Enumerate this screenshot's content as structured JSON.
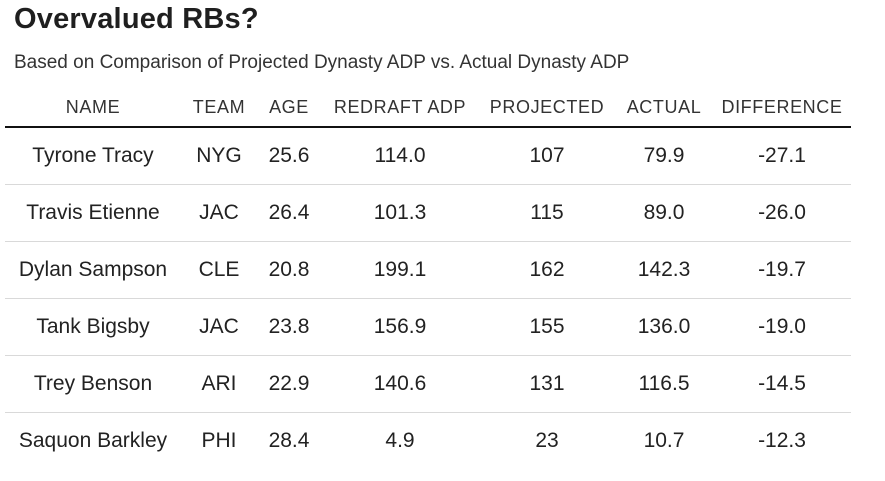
{
  "chart_data": {
    "type": "table",
    "title": "Overvalued RBs?",
    "subtitle": "Based on Comparison of Projected Dynasty ADP vs. Actual Dynasty ADP",
    "columns": [
      "NAME",
      "TEAM",
      "AGE",
      "REDRAFT ADP",
      "PROJECTED",
      "ACTUAL",
      "DIFFERENCE"
    ],
    "rows": [
      [
        "Tyrone Tracy",
        "NYG",
        "25.6",
        "114.0",
        "107",
        "79.9",
        "-27.1"
      ],
      [
        "Travis Etienne",
        "JAC",
        "26.4",
        "101.3",
        "115",
        "89.0",
        "-26.0"
      ],
      [
        "Dylan Sampson",
        "CLE",
        "20.8",
        "199.1",
        "162",
        "142.3",
        "-19.7"
      ],
      [
        "Tank Bigsby",
        "JAC",
        "23.8",
        "156.9",
        "155",
        "136.0",
        "-19.0"
      ],
      [
        "Trey Benson",
        "ARI",
        "22.9",
        "140.6",
        "131",
        "116.5",
        "-14.5"
      ],
      [
        "Saquon Barkley",
        "PHI",
        "28.4",
        "4.9",
        "23",
        "10.7",
        "-12.3"
      ]
    ]
  }
}
